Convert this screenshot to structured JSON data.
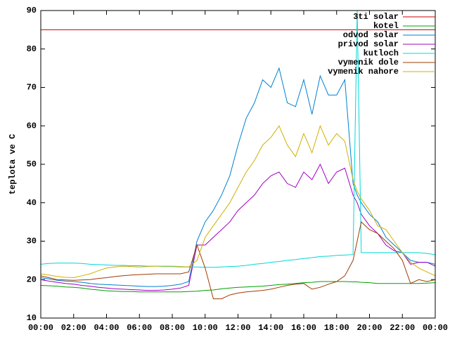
{
  "chart_data": {
    "type": "line",
    "y_label": "teplota ve C",
    "x": [
      0,
      0.5,
      1,
      1.5,
      2,
      2.5,
      3,
      3.5,
      4,
      4.5,
      5,
      5.5,
      6,
      6.5,
      7,
      7.5,
      8,
      8.5,
      9,
      9.5,
      10,
      10.5,
      11,
      11.5,
      12,
      12.5,
      13,
      13.5,
      14,
      14.5,
      15,
      15.5,
      16,
      16.5,
      17,
      17.5,
      18,
      18.5,
      19,
      19.25,
      19.5,
      20,
      20.5,
      21,
      21.5,
      22,
      22.5,
      23,
      23.5,
      24
    ],
    "xlim": [
      0,
      24
    ],
    "xticks": [
      {
        "value": 0,
        "label": "00:00"
      },
      {
        "value": 2,
        "label": "02:00"
      },
      {
        "value": 4,
        "label": "04:00"
      },
      {
        "value": 6,
        "label": "06:00"
      },
      {
        "value": 8,
        "label": "08:00"
      },
      {
        "value": 10,
        "label": "10:00"
      },
      {
        "value": 12,
        "label": "12:00"
      },
      {
        "value": 14,
        "label": "14:00"
      },
      {
        "value": 16,
        "label": "16:00"
      },
      {
        "value": 18,
        "label": "18:00"
      },
      {
        "value": 20,
        "label": "20:00"
      },
      {
        "value": 22,
        "label": "22:00"
      },
      {
        "value": 24,
        "label": "00:00"
      }
    ],
    "ylim": [
      10,
      90
    ],
    "yticks": [
      10,
      20,
      30,
      40,
      50,
      60,
      70,
      80,
      90
    ],
    "grid": false,
    "legend": "top-right",
    "series": [
      {
        "name": "3ti solar",
        "color": "#c80000",
        "values": [
          85,
          85,
          85,
          85,
          85,
          85,
          85,
          85,
          85,
          85,
          85,
          85,
          85,
          85,
          85,
          85,
          85,
          85,
          85,
          85,
          85,
          85,
          85,
          85,
          85,
          85,
          85,
          85,
          85,
          85,
          85,
          85,
          85,
          85,
          85,
          85,
          85,
          85,
          85,
          85,
          85,
          85,
          85,
          85,
          85,
          85,
          85,
          85,
          85,
          85
        ]
      },
      {
        "name": "kotel",
        "color": "#00a000",
        "values": [
          18.5,
          18.4,
          18.3,
          18.1,
          18,
          17.8,
          17.5,
          17.3,
          17.1,
          17,
          16.9,
          16.9,
          16.8,
          16.8,
          16.8,
          16.8,
          16.8,
          16.8,
          16.9,
          17,
          17.2,
          17.3,
          17.6,
          17.8,
          18,
          18.1,
          18.2,
          18.3,
          18.5,
          18.7,
          18.8,
          19,
          19.2,
          19.3,
          19.5,
          19.5,
          19.5,
          19.5,
          19.4,
          19.4,
          19.3,
          19.2,
          19,
          19,
          19,
          19,
          19,
          19,
          19.1,
          19.2
        ]
      },
      {
        "name": "odvod solar",
        "color": "#0080d0",
        "values": [
          20.5,
          20.2,
          19.8,
          19.6,
          19.5,
          19.3,
          19,
          18.8,
          18.7,
          18.6,
          18.5,
          18.4,
          18.3,
          18.2,
          18.2,
          18.3,
          18.5,
          18.8,
          19.5,
          30,
          35,
          38,
          42,
          47,
          55,
          62,
          66,
          72,
          70,
          75,
          66,
          65,
          72,
          63,
          73,
          68,
          68,
          72,
          45,
          42,
          40,
          37,
          35,
          31,
          29,
          27,
          25,
          24.5,
          24.5,
          24
        ]
      },
      {
        "name": "privod solar",
        "color": "#a000c0",
        "values": [
          20,
          19.6,
          19.3,
          19,
          18.8,
          18.5,
          18.3,
          18,
          17.8,
          17.6,
          17.5,
          17.4,
          17.3,
          17.2,
          17.2,
          17.3,
          17.5,
          17.8,
          18.5,
          29,
          29,
          31,
          33,
          35,
          38,
          40,
          42,
          45,
          47,
          48,
          45,
          44,
          48,
          46,
          50,
          45,
          48,
          49,
          42,
          40,
          37,
          34,
          32,
          29,
          27.5,
          27,
          24,
          24.5,
          24.5,
          23.5
        ]
      },
      {
        "name": "kutloch",
        "color": "#00d8d8",
        "values": [
          24,
          24.2,
          24.3,
          24.3,
          24.3,
          24.2,
          24,
          23.9,
          23.8,
          23.7,
          23.7,
          23.6,
          23.6,
          23.5,
          23.5,
          23.4,
          23.4,
          23.3,
          23.3,
          23.3,
          23.2,
          23.2,
          23.3,
          23.4,
          23.5,
          23.7,
          24,
          24.2,
          24.5,
          24.7,
          25,
          25.2,
          25.5,
          25.7,
          26,
          26.1,
          26.3,
          26.4,
          26.5,
          90,
          27,
          27,
          27,
          27,
          27,
          27,
          27,
          27,
          26.8,
          26.5
        ]
      },
      {
        "name": "vymenik dole",
        "color": "#a03c00",
        "values": [
          21,
          20.5,
          20,
          19.9,
          19.8,
          19.9,
          20,
          20.3,
          20.5,
          20.8,
          21,
          21.2,
          21.3,
          21.4,
          21.5,
          21.5,
          21.5,
          21.5,
          22,
          29,
          23,
          15,
          15,
          16,
          16.5,
          16.8,
          17,
          17.2,
          17.5,
          18,
          18.5,
          18.8,
          19,
          17.5,
          18,
          18.8,
          19.5,
          21,
          25,
          30,
          35,
          33,
          32,
          30,
          28,
          25,
          19,
          20,
          19.5,
          20
        ]
      },
      {
        "name": "vymenik nahore",
        "color": "#d0b000",
        "values": [
          21.5,
          21.2,
          20.8,
          20.6,
          20.5,
          21,
          21.5,
          22.3,
          23,
          23.3,
          23.5,
          23.4,
          23.3,
          23.4,
          23.5,
          23.5,
          23.5,
          23.4,
          23.3,
          25,
          31,
          34,
          37,
          40,
          44,
          48,
          51,
          55,
          57,
          60,
          55,
          52,
          58,
          53,
          60,
          55,
          58,
          56,
          46,
          43,
          41,
          38,
          34,
          33,
          30,
          27,
          24.5,
          23,
          22,
          21
        ]
      }
    ]
  }
}
